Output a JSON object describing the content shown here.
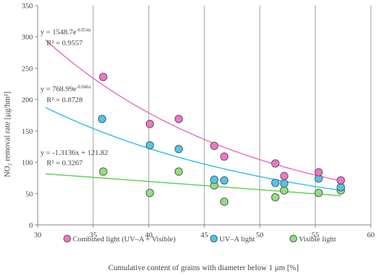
{
  "chart_data": {
    "type": "scatter",
    "xlabel": "Cumulative content of grains with diameter below 1 μm [%]",
    "ylabel": "NO₂ removal rate [μg/hm²]",
    "xlim": [
      30,
      60
    ],
    "ylim": [
      0,
      350
    ],
    "x_ticks": [
      30,
      35,
      40,
      45,
      50,
      55,
      60
    ],
    "y_ticks": [
      0,
      50,
      100,
      150,
      200,
      250,
      300,
      350
    ],
    "grid": "vertical lines at x ticks",
    "legend_position": "bottom",
    "series": [
      {
        "name": "Combined light (UV–A + Visible)",
        "color": "#f075c8",
        "points": [
          [
            35.9,
            236
          ],
          [
            40.1,
            161
          ],
          [
            42.7,
            169
          ],
          [
            45.9,
            126
          ],
          [
            46.8,
            109
          ],
          [
            51.4,
            98
          ],
          [
            52.2,
            78
          ],
          [
            55.3,
            84
          ],
          [
            57.3,
            71
          ]
        ],
        "trend": {
          "type": "exponential",
          "a": 1548.7,
          "b": -0.054,
          "x_range": [
            30.7,
            57.3
          ],
          "color": "#ee6bc8"
        },
        "equation": "y = 1548.7e",
        "equation_exp": "-0.054x",
        "r2": "R² = 0.9557"
      },
      {
        "name": "UV–A light",
        "color": "#4fc6ea",
        "points": [
          [
            35.8,
            169
          ],
          [
            40.1,
            127
          ],
          [
            42.7,
            121
          ],
          [
            45.9,
            72
          ],
          [
            46.8,
            71
          ],
          [
            51.4,
            67
          ],
          [
            52.2,
            66
          ],
          [
            55.3,
            74
          ],
          [
            57.3,
            60
          ]
        ],
        "trend": {
          "type": "exponential",
          "a": 768.99,
          "b": -0.046,
          "x_range": [
            30.7,
            57.3
          ],
          "color": "#2ec0e8"
        },
        "equation": "y = 768.99e",
        "equation_exp": "-0.046x",
        "r2": "R² = 0.8728"
      },
      {
        "name": "Visible light",
        "color": "#8fe07e",
        "points": [
          [
            35.9,
            85
          ],
          [
            40.1,
            51
          ],
          [
            42.7,
            85
          ],
          [
            45.9,
            63
          ],
          [
            46.8,
            37
          ],
          [
            51.4,
            44
          ],
          [
            52.2,
            55
          ],
          [
            55.3,
            51
          ],
          [
            57.3,
            55
          ]
        ],
        "trend": {
          "type": "linear",
          "m": -1.3136,
          "c": 121.82,
          "x_range": [
            30.7,
            57.3
          ],
          "color": "#5ccf52"
        },
        "equation": "y = -1.3136x + 121.82",
        "equation_exp": "",
        "r2": "R² = 0.3267"
      }
    ]
  }
}
